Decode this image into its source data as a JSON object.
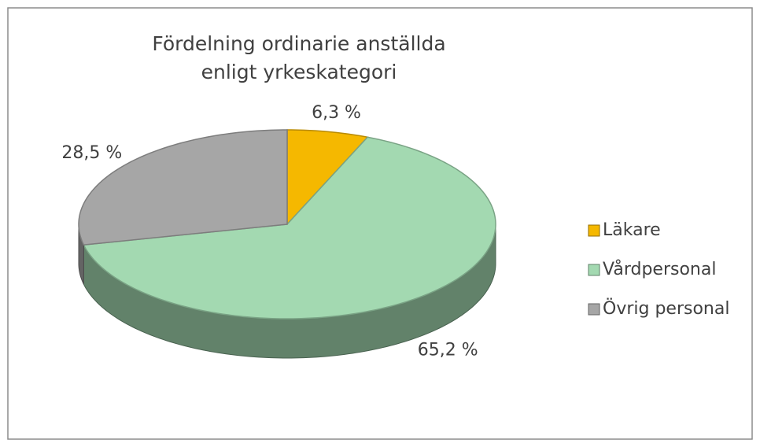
{
  "chart_data": {
    "type": "pie",
    "title": "Fördelning ordinarie anställda\nenligt yrkeskategori",
    "categories": [
      "Läkare",
      "Vårdpersonal",
      "Övrig personal"
    ],
    "series": [
      {
        "name": "Andel",
        "values": [
          6.3,
          65.2,
          28.5
        ],
        "value_labels": [
          "6,3 %",
          "65,2 %",
          "28,5 %"
        ]
      }
    ],
    "colors": [
      "#f5b800",
      "#a3d9b1",
      "#a6a6a6"
    ],
    "legend": "right"
  }
}
